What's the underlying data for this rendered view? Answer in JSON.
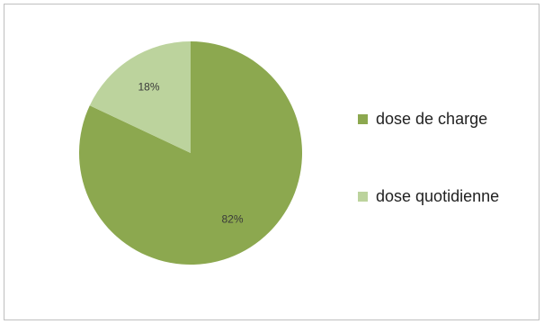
{
  "chart_data": {
    "type": "pie",
    "slices": [
      {
        "label": "dose de charge",
        "value": 82,
        "display": "82%",
        "color": "#8ca84f"
      },
      {
        "label": "dose quotidienne",
        "value": 18,
        "display": "18%",
        "color": "#bcd39d"
      }
    ],
    "legend_position": "right"
  }
}
